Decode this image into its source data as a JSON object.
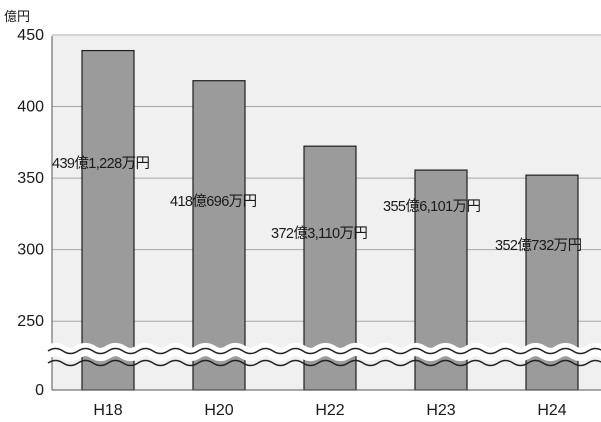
{
  "chart_data": {
    "type": "bar",
    "unit_label": "億円",
    "categories": [
      "H18",
      "H20",
      "H22",
      "H23",
      "H24"
    ],
    "values": [
      439.12,
      418.07,
      372.31,
      355.61,
      352.07
    ],
    "data_labels": [
      "439億1,228万円",
      "418億696万円",
      "372億3,110万円",
      "355億6,101万円",
      "352億732万円"
    ],
    "y_ticks": [
      "450",
      "400",
      "350",
      "300",
      "250",
      "0"
    ],
    "ylim": [
      0,
      450
    ],
    "y_axis_break": [
      0,
      250
    ],
    "grid": true,
    "colors": {
      "bar_fill": "#9b9b9b",
      "bar_stroke": "#1e1e1e",
      "plot_bg": "#f0f0f0",
      "grid": "#a8a8a8",
      "text": "#1a1a1a"
    }
  }
}
